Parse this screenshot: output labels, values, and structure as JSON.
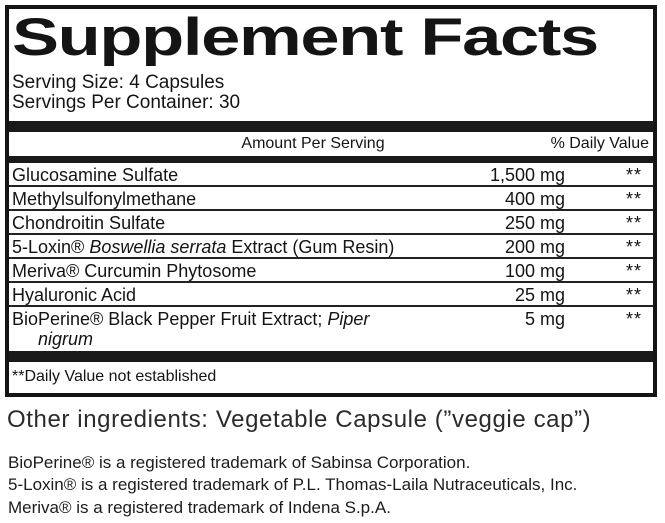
{
  "supplement_facts": {
    "title": "Supplement Facts",
    "serving_size": "Serving Size: 4 Capsules",
    "servings_per_container": "Servings Per Container: 30",
    "header": {
      "amount": "Amount Per Serving",
      "daily_value": "% Daily Value"
    },
    "rows": [
      {
        "name_lines": [
          [
            {
              "text": "Glucosamine Sulfate",
              "italic": false
            }
          ]
        ],
        "amount": "1,500 mg",
        "daily_value": "**"
      },
      {
        "name_lines": [
          [
            {
              "text": "Methylsulfonylmethane",
              "italic": false
            }
          ]
        ],
        "amount": "400 mg",
        "daily_value": "**"
      },
      {
        "name_lines": [
          [
            {
              "text": "Chondroitin Sulfate",
              "italic": false
            }
          ]
        ],
        "amount": "250 mg",
        "daily_value": "**"
      },
      {
        "name_lines": [
          [
            {
              "text": "5-Loxin® ",
              "italic": false
            },
            {
              "text": "Boswellia serrata",
              "italic": true
            },
            {
              "text": " Extract (Gum Resin)",
              "italic": false
            }
          ]
        ],
        "amount": "200 mg",
        "daily_value": "**"
      },
      {
        "name_lines": [
          [
            {
              "text": "Meriva® Curcumin Phytosome",
              "italic": false
            }
          ]
        ],
        "amount": "100 mg",
        "daily_value": "**"
      },
      {
        "name_lines": [
          [
            {
              "text": "Hyaluronic Acid",
              "italic": false
            }
          ]
        ],
        "amount": "25 mg",
        "daily_value": "**"
      },
      {
        "name_lines": [
          [
            {
              "text": "BioPerine® Black Pepper Fruit Extract; ",
              "italic": false
            },
            {
              "text": "Piper",
              "italic": true
            }
          ],
          [
            {
              "text": "nigrum",
              "italic": true
            }
          ]
        ],
        "amount": "5 mg",
        "daily_value": "**"
      }
    ],
    "footnote": "**Daily Value not established"
  },
  "other_ingredients": "Other ingredients: Vegetable Capsule (”veggie cap”)",
  "trademark_notes": [
    "BioPerine® is a registered trademark of Sabinsa Corporation.",
    "5-Loxin® is a registered trademark of P.L. Thomas-Laila Nutraceuticals, Inc.",
    "Meriva® is a registered trademark of Indena S.p.A."
  ],
  "colors": {
    "ink": "#111111",
    "bar": "#1a1a1a",
    "background": "#ffffff"
  }
}
